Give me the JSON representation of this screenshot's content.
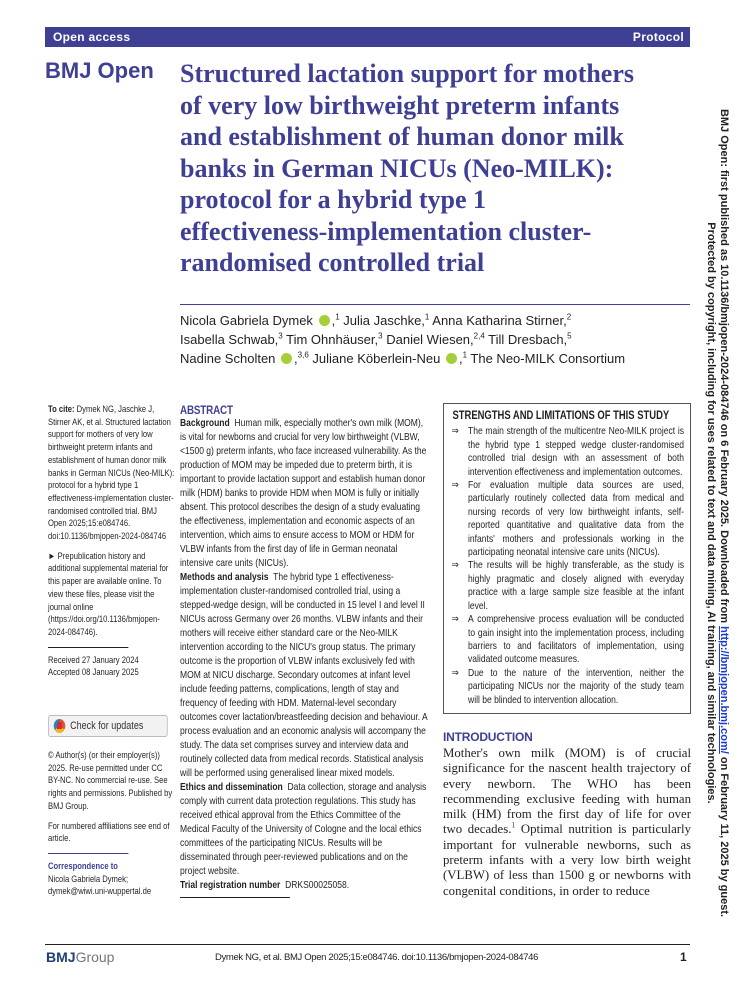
{
  "header": {
    "left": "Open access",
    "right": "Protocol",
    "brand": "BMJ Open",
    "bar_color": "#3f3f94"
  },
  "title": {
    "lines": [
      "Structured lactation support for mothers",
      "of very low birthweight preterm infants",
      "and establishment of human donor milk",
      "banks in German NICUs (Neo-MILK):",
      "protocol for a hybrid type 1",
      "effectiveness-implementation cluster-",
      "randomised controlled trial"
    ]
  },
  "authors": {
    "a1": "Nicola Gabriela Dymek",
    "a1s": "1",
    "a2": "Julia Jaschke,",
    "a2s": "1",
    "a3": "Anna Katharina Stirner,",
    "a3s": "2",
    "a4": "Isabella Schwab,",
    "a4s": "3",
    "a5": "Tim Ohnhäuser,",
    "a5s": "3",
    "a6": "Daniel Wiesen,",
    "a6s": "2,4",
    "a7": "Till Dresbach,",
    "a7s": "5",
    "a8": "Nadine Scholten",
    "a8s": "3,6",
    "a9": "Juliane Köberlein-Neu",
    "a9s": "1",
    "a10": "The Neo-MILK Consortium"
  },
  "left": {
    "cite_label": "To cite:",
    "cite_text": "Dymek NG, Jaschke J, Stirner AK, et al. Structured lactation support for mothers of very low birthweight preterm infants and establishment of human donor milk banks in German NICUs (Neo-MILK): protocol for a hybrid type 1 effectiveness-implementation cluster-randomised controlled trial. BMJ Open 2025;15:e084746. doi:10.1136/bmjopen-2024-084746",
    "prepub": "► Prepublication history and additional supplemental material for this paper are available online. To view these files, please visit the journal online (https://doi.org/10.1136/bmjopen-2024-084746).",
    "received": "Received 27 January 2024",
    "accepted": "Accepted 08 January 2025",
    "check_updates": "Check for updates",
    "copyright": "© Author(s) (or their employer(s)) 2025. Re-use permitted under CC BY-NC. No commercial re-use. See rights and permissions. Published by BMJ Group.",
    "affiliations": "For numbered affiliations see end of article.",
    "corr_label": "Correspondence to",
    "corr_name": "Nicola Gabriela Dymek;",
    "corr_email": "dymek@wiwi.uni-wuppertal.de"
  },
  "abstract": {
    "heading": "ABSTRACT",
    "background_label": "Background",
    "background": "Human milk, especially mother's own milk (MOM), is vital for newborns and crucial for very low birthweight (VLBW, <1500 g) preterm infants, who face increased vulnerability. As the production of MOM may be impeded due to preterm birth, it is important to provide lactation support and establish human donor milk (HDM) banks to provide HDM when MOM is fully or initially absent. This protocol describes the design of a study evaluating the effectiveness, implementation and economic aspects of an intervention, which aims to ensure access to MOM or HDM for VLBW infants from the first day of life in German neonatal intensive care units (NICUs).",
    "methods_label": "Methods and analysis",
    "methods": "The hybrid type 1 effectiveness-implementation cluster-randomised controlled trial, using a stepped-wedge design, will be conducted in 15 level I and level II NICUs across Germany over 26 months. VLBW infants and their mothers will receive either standard care or the Neo-MILK intervention according to the NICU's group status. The primary outcome is the proportion of VLBW infants exclusively fed with MOM at NICU discharge. Secondary outcomes at infant level include feeding patterns, complications, length of stay and frequency of feeding with HDM. Maternal-level secondary outcomes cover lactation/breastfeeding decision and behaviour. A process evaluation and an economic analysis will accompany the study. The data set comprises survey and interview data and routinely collected data from medical records. Statistical analysis will be performed using generalised linear mixed models.",
    "ethics_label": "Ethics and dissemination",
    "ethics": "Data collection, storage and analysis comply with current data protection regulations. This study has received ethical approval from the Ethics Committee of the Medical Faculty of the University of Cologne and the local ethics committees of the participating NICUs. Results will be disseminated through peer-reviewed publications and on the project website.",
    "trial_label": "Trial registration number",
    "trial": "DRKS00025058."
  },
  "strengths": {
    "heading": "STRENGTHS AND LIMITATIONS OF THIS STUDY",
    "bullet": "⇒",
    "items": [
      "The main strength of the multicentre Neo-MILK project is the hybrid type 1 stepped wedge cluster-randomised controlled trial design with an assessment of both intervention effectiveness and implementation outcomes.",
      "For evaluation multiple data sources are used, particularly routinely collected data from medical and nursing records of very low birthweight infants, self-reported quantitative and qualitative data from the infants' mothers and professionals working in the participating neonatal intensive care units (NICUs).",
      "The results will be highly transferable, as the study is highly pragmatic and closely aligned with everyday practice with a large sample size feasible at the infant level.",
      "A comprehensive process evaluation will be conducted to gain insight into the implementation process, including barriers to and facilitators of implementation, using validated outcome measures.",
      "Due to the nature of the intervention, neither the participating NICUs nor the majority of the study team will be blinded to intervention allocation."
    ]
  },
  "intro": {
    "heading": "INTRODUCTION",
    "text1": "Mother's own milk (MOM) is of crucial significance for the nascent health trajectory of every newborn. The WHO has been recommending exclusive feeding with human milk (HM) from the first day of life for over two decades.",
    "ref1": "1",
    "text2": " Optimal nutrition is particularly important for vulnerable newborns, such as preterm infants with a very low birth weight (VLBW) of less than 1500 g or newborns with congenital conditions, in order to reduce"
  },
  "footer": {
    "logo_bold": "BMJ",
    "logo_light": "Group",
    "cite": "Dymek NG, et al. BMJ Open 2025;15:e084746. doi:10.1136/bmjopen-2024-084746",
    "page": "1"
  },
  "sidenote": {
    "line1a": "BMJ Open: first published as 10.1136/bmjopen-2024-084746 on 6 February 2025. Downloaded from ",
    "link": "http://bmjopen.bmj.com/",
    "line1b": " on February 11, 2025 by guest.",
    "line2": "Protected by copyright, including for uses related to text and data mining, AI training, and similar technologies."
  }
}
